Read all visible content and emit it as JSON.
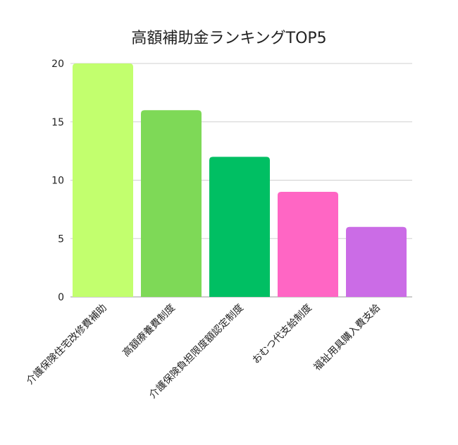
{
  "chart_data": {
    "type": "bar",
    "title": "高額補助金ランキングTOP5",
    "categories": [
      "介護保険住宅改修費補助",
      "高額療養費制度",
      "介護保険負担限度額認定制度",
      "おむつ代支給制度",
      "福祉用具購入費支給"
    ],
    "values": [
      20,
      16,
      12,
      9,
      6
    ],
    "colors": [
      "#c2ff6e",
      "#7ed957",
      "#00bf63",
      "#ff66c4",
      "#cb6ce6"
    ],
    "ylim": [
      0,
      20
    ],
    "yticks": [
      0,
      5,
      10,
      15,
      20
    ],
    "grid": true,
    "xlabel": "",
    "ylabel": ""
  }
}
